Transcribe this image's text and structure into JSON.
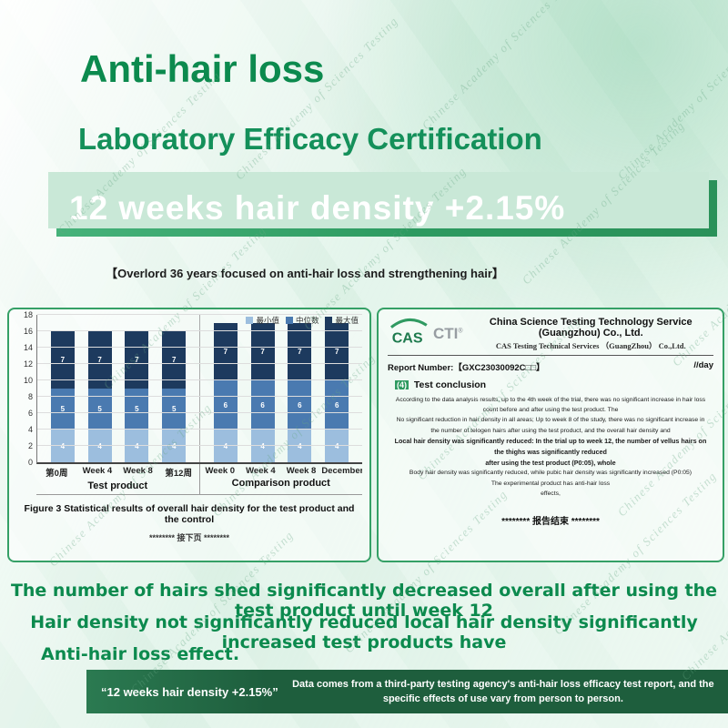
{
  "page": {
    "accent_green": "#0c8a4e",
    "banner_green": "#2f9a61",
    "dark_green": "#1e5e3d"
  },
  "watermark": {
    "text": "Chinese Academy of Sciences Testing"
  },
  "header": {
    "title": "Anti-hair loss",
    "subtitle": "Laboratory Efficacy Certification",
    "banner": "12 weeks hair density +2.15%",
    "tagline": "【Overlord 36 years focused on anti-hair loss and strengthening hair】"
  },
  "chart_data": {
    "type": "stacked-bar",
    "title": "",
    "xlabel": "",
    "ylabel": "",
    "ylim": [
      0,
      18
    ],
    "ytick_step": 2,
    "grid": true,
    "legend_position": "top-right",
    "series_names": [
      "最小值",
      "中位数",
      "最大值"
    ],
    "series_colors": [
      "#9cbede",
      "#4a7ab0",
      "#1d3a5e"
    ],
    "groups": [
      {
        "name": "Test product",
        "bar_labels": [
          "第0周",
          "Week 4",
          "Week 8",
          "第12周"
        ],
        "bars": [
          [
            4,
            5,
            7
          ],
          [
            4,
            5,
            7
          ],
          [
            4,
            5,
            7
          ],
          [
            4,
            5,
            7
          ]
        ]
      },
      {
        "name": "Comparison product",
        "bar_labels": [
          "Week 0",
          "Week 4",
          "Week 8",
          "December"
        ],
        "bars": [
          [
            4,
            6,
            7
          ],
          [
            4,
            6,
            7
          ],
          [
            4,
            6,
            7
          ],
          [
            4,
            6,
            7
          ]
        ]
      }
    ],
    "caption": "Figure 3 Statistical results of overall hair density for the test product and the control",
    "footnote": "******** 接下页 ********"
  },
  "report": {
    "logo_cas": "CAS",
    "logo_cti": "CTI",
    "org_en": "China Science Testing Technology Service (Guangzhou) Co., Ltd.",
    "org_sub": "CAS Testing Technical Services （GuangZhou） Co.,Ltd.",
    "report_number_label": "Report Number:",
    "report_number": "【GXC23030092C□□】",
    "date_note": "//day",
    "section_no": "(4)",
    "section_title": "Test conclusion",
    "body_lines": [
      {
        "text": "According to the data analysis results, up to the 4th week of the trial, there was no significant increase in hair loss count before and after using the test product. The",
        "bold": false
      },
      {
        "text": "No significant reduction in hair density in all areas; Up to week 8 of the study, there was no significant increase in the number of telogen hairs after using the test product, and the overall hair density and",
        "bold": false
      },
      {
        "text": "Local hair density was significantly reduced: In the trial up to week 12, the number of vellus hairs on the thighs was significantly reduced",
        "bold": true
      },
      {
        "text": "after using the test product (P0:05), whole",
        "bold": true
      },
      {
        "text": "Body hair density was significantly reduced, while pubic hair density was significantly increased (P0:05)",
        "bold": false
      },
      {
        "text": "The experimental product has anti-hair loss",
        "bold": false
      },
      {
        "text": "effects,",
        "bold": false
      }
    ],
    "end_line": "******** 报告结束 ********"
  },
  "conclusion": {
    "line1": "The number of hairs shed significantly decreased overall after using the test product until week 12",
    "line2": "Hair density not significantly reduced local hair density significantly increased test products have",
    "line3": "Anti-hair loss effect."
  },
  "footer": {
    "quote": "“12 weeks hair density +2.15%”",
    "disclaimer": "Data comes from a third-party testing agency's anti-hair loss efficacy test report, and the specific effects of use vary from person to person."
  }
}
